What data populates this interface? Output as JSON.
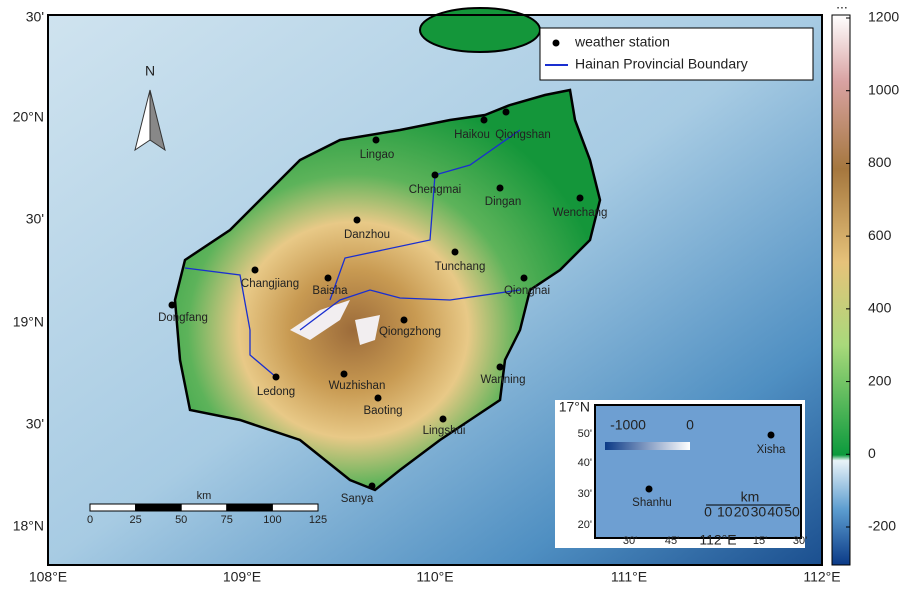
{
  "axes": {
    "lat_labels": [
      "30'",
      "20°N",
      "30'",
      "19°N",
      "30'",
      "18°N"
    ],
    "lon_labels": [
      "108°E",
      "109°E",
      "110°E",
      "111°E",
      "112°E"
    ]
  },
  "colorbar": {
    "top_label": "...",
    "ticks": [
      1200,
      1000,
      800,
      600,
      400,
      200,
      0,
      -200
    ]
  },
  "legend": {
    "station": "weather station",
    "boundary": "Hainan Provincial Boundary"
  },
  "north_arrow": "N",
  "stations": [
    "Haikou",
    "Qiongshan",
    "Lingao",
    "Chengmai",
    "Dingan",
    "Wenchang",
    "Danzhou",
    "Tunchang",
    "Changjiang",
    "Baisha",
    "Qionghai",
    "Dongfang",
    "Qiongzhong",
    "Ledong",
    "Wuzhishan",
    "Wanning",
    "Baoting",
    "Lingshui",
    "Sanya"
  ],
  "scale_bar": {
    "unit": "km",
    "ticks": [
      0,
      25,
      50,
      75,
      100,
      125
    ]
  },
  "inset": {
    "lat_labels": [
      "17°N",
      "50'",
      "40'",
      "30'",
      "20'"
    ],
    "lon_labels": [
      "30'",
      "45'",
      "112°E",
      "15'",
      "30'"
    ],
    "colorbar_ticks": [
      -1000,
      0
    ],
    "stations": [
      "Xisha",
      "Shanhu"
    ],
    "scale_unit": "km",
    "scale_ticks": [
      0,
      10,
      20,
      30,
      40,
      50
    ]
  }
}
